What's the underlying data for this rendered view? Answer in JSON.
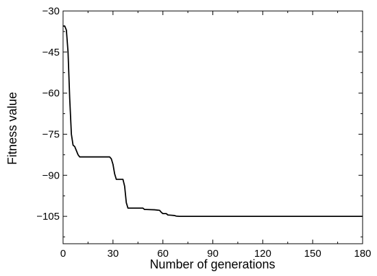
{
  "chart_data": {
    "type": "line",
    "title": "",
    "xlabel": "Number of generations",
    "ylabel": "Fitness value",
    "xlim": [
      0,
      180
    ],
    "ylim": [
      -115,
      -30
    ],
    "xticks": [
      0,
      30,
      60,
      90,
      120,
      150,
      180
    ],
    "xtick_labels": [
      "0",
      "30",
      "60",
      "90",
      "120",
      "150",
      "180"
    ],
    "yticks": [
      -30,
      -45,
      -60,
      -75,
      -90,
      -105
    ],
    "ytick_labels": [
      "−30",
      "−45",
      "−60",
      "−75",
      "−90",
      "−105"
    ],
    "grid": false,
    "legend": "none",
    "line_color": "#000000",
    "series": [
      {
        "x": [
          0,
          1,
          2,
          3,
          4,
          5,
          6,
          7,
          8,
          9,
          10,
          12,
          15,
          20,
          25,
          28,
          29,
          30,
          31,
          32,
          33,
          34,
          35,
          36,
          37,
          38,
          39,
          40,
          45,
          48,
          49,
          50,
          55,
          58,
          59,
          60,
          61,
          62,
          63,
          65,
          67,
          68,
          70,
          80,
          90,
          100,
          120,
          150,
          180
        ],
        "y": [
          -35.5,
          -35.5,
          -37,
          -45,
          -62,
          -75,
          -79,
          -79.5,
          -81,
          -82.5,
          -83.3,
          -83.3,
          -83.3,
          -83.3,
          -83.3,
          -83.3,
          -84,
          -86,
          -89.5,
          -91.5,
          -91.5,
          -91.5,
          -91.5,
          -91.5,
          -94,
          -100,
          -102,
          -102,
          -102,
          -102,
          -102.5,
          -102.5,
          -102.6,
          -102.8,
          -103.5,
          -104,
          -104,
          -104,
          -104.5,
          -104.6,
          -104.7,
          -104.9,
          -105,
          -105,
          -105,
          -105,
          -105,
          -105,
          -105
        ]
      }
    ]
  }
}
